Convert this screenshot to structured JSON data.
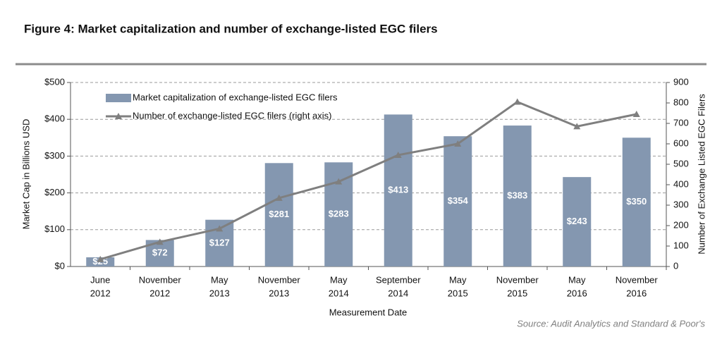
{
  "chart_data": {
    "type": "bar-line",
    "title": "Figure 4: Market capitalization and number of exchange-listed EGC filers",
    "categories": [
      [
        "June",
        "2012"
      ],
      [
        "November",
        "2012"
      ],
      [
        "May",
        "2013"
      ],
      [
        "November",
        "2013"
      ],
      [
        "May",
        "2014"
      ],
      [
        "September",
        "2014"
      ],
      [
        "May",
        "2015"
      ],
      [
        "November",
        "2015"
      ],
      [
        "May",
        "2016"
      ],
      [
        "November",
        "2016"
      ]
    ],
    "series": [
      {
        "name": "Market capitalization of exchange-listed EGC filers",
        "type": "bar",
        "color": "#8497b0",
        "values": [
          25,
          72,
          127,
          281,
          283,
          413,
          354,
          383,
          243,
          350
        ],
        "value_labels": [
          "$25",
          "$72",
          "$127",
          "$281",
          "$283",
          "$413",
          "$354",
          "$383",
          "$243",
          "$350"
        ]
      },
      {
        "name": "Number of exchange-listed EGC filers (right axis)",
        "type": "line",
        "axis": "y2",
        "color": "#7f7f7f",
        "values": [
          35,
          120,
          185,
          335,
          415,
          545,
          600,
          805,
          685,
          745
        ]
      }
    ],
    "ylim": [
      0,
      500
    ],
    "yticks": [
      {
        "value": 0,
        "label": "$0"
      },
      {
        "value": 100,
        "label": "$100"
      },
      {
        "value": 200,
        "label": "$200"
      },
      {
        "value": 300,
        "label": "$300"
      },
      {
        "value": 400,
        "label": "$400"
      },
      {
        "value": 500,
        "label": "$500"
      }
    ],
    "y2lim": [
      0,
      900
    ],
    "y2ticks": [
      0,
      100,
      200,
      300,
      400,
      500,
      600,
      700,
      800,
      900
    ],
    "ylabel": "Market Cap in Billions USD",
    "y2label": "Number of Exchange Listed EGC Filers",
    "xlabel": "Measurement Date",
    "source": "Source: Audit Analytics and Standard & Poor's",
    "grid": true,
    "legend": "upper left"
  }
}
